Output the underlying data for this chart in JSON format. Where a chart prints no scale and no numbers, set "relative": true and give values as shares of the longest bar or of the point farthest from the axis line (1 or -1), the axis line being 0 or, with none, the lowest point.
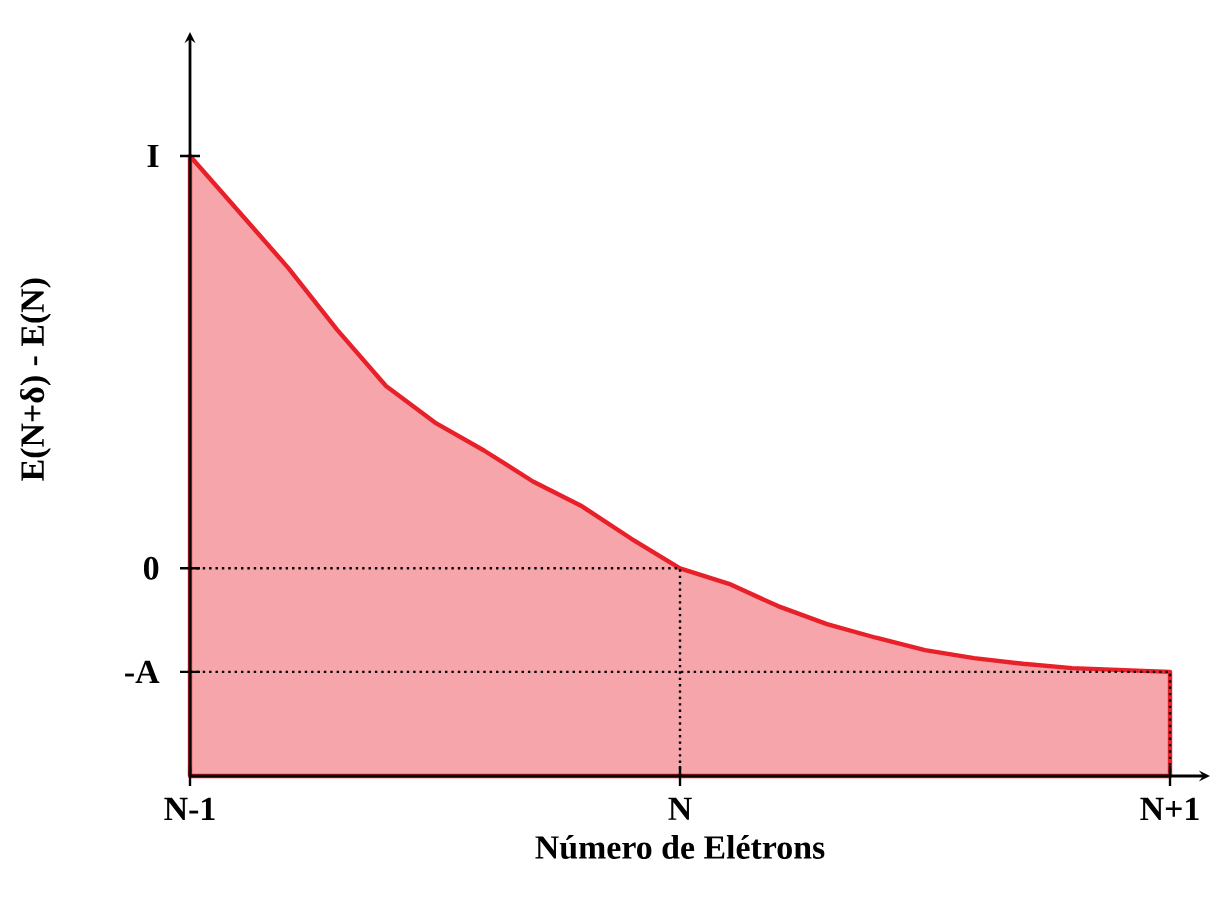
{
  "chart_data": {
    "type": "area",
    "relative": true,
    "xlabel": "Número de Elétrons",
    "ylabel": "E(N+δ) - E(N)",
    "categories": [
      "N-1",
      null,
      null,
      null,
      null,
      null,
      null,
      null,
      null,
      null,
      "N",
      null,
      null,
      null,
      null,
      null,
      null,
      null,
      null,
      null,
      "N+1"
    ],
    "series": [
      {
        "color": "#e8202a",
        "values": [
          1.0,
          0.91,
          0.82,
          0.72,
          0.629,
          0.57,
          0.525,
          0.475,
          0.435,
          0.383,
          0.335,
          0.31,
          0.274,
          0.245,
          0.223,
          0.203,
          0.19,
          0.181,
          0.174,
          0.171,
          0.168
        ]
      }
    ],
    "annotations": [
      {
        "text": "I",
        "x": "N-1",
        "y": 1.0
      }
    ],
    "ref_lines": [
      {
        "axis": "y",
        "value": 0.335,
        "label": "0",
        "line_style": "dotted"
      },
      {
        "axis": "y",
        "value": 0.168,
        "label": "-A",
        "line_style": "dotted"
      }
    ]
  }
}
